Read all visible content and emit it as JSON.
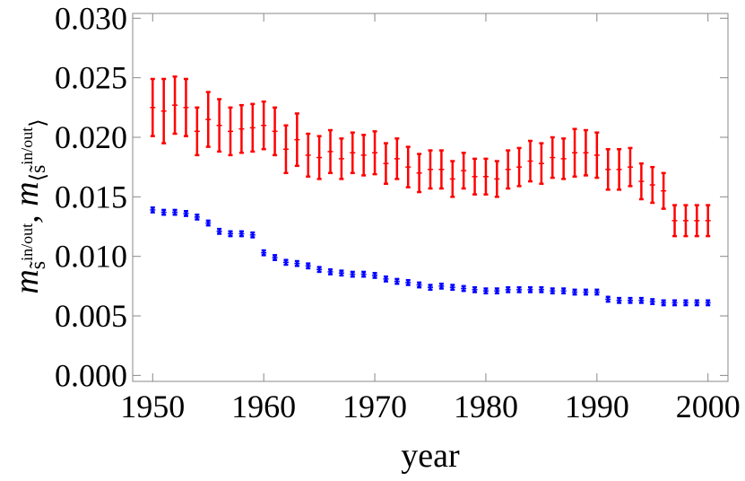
{
  "chart_data": {
    "type": "errorbar",
    "xlabel": "year",
    "ylabel_parts": [
      {
        "text": "m",
        "role": "base"
      },
      {
        "text": "s̃",
        "role": "sub"
      },
      {
        "text": "in/out",
        "role": "subsup"
      },
      {
        "text": ", m",
        "role": "base"
      },
      {
        "text": "⟨s̃",
        "role": "sub"
      },
      {
        "text": "in/out",
        "role": "subsup"
      },
      {
        "text": "⟩",
        "role": "sub"
      }
    ],
    "x": [
      1950,
      1951,
      1952,
      1953,
      1954,
      1955,
      1956,
      1957,
      1958,
      1959,
      1960,
      1961,
      1962,
      1963,
      1964,
      1965,
      1966,
      1967,
      1968,
      1969,
      1970,
      1971,
      1972,
      1973,
      1974,
      1975,
      1976,
      1977,
      1978,
      1979,
      1980,
      1981,
      1982,
      1983,
      1984,
      1985,
      1986,
      1987,
      1988,
      1989,
      1990,
      1991,
      1992,
      1993,
      1994,
      1995,
      1996,
      1997,
      1998,
      1999,
      2000
    ],
    "series": [
      {
        "color": "#ff0000",
        "values": [
          0.0225,
          0.0222,
          0.0227,
          0.0225,
          0.0205,
          0.0215,
          0.021,
          0.0205,
          0.0207,
          0.0208,
          0.021,
          0.0205,
          0.019,
          0.0198,
          0.0185,
          0.0183,
          0.0188,
          0.0182,
          0.0187,
          0.0185,
          0.0187,
          0.0178,
          0.0182,
          0.0175,
          0.017,
          0.0173,
          0.0173,
          0.0165,
          0.0172,
          0.0167,
          0.0167,
          0.0165,
          0.0173,
          0.0175,
          0.018,
          0.0178,
          0.0183,
          0.0182,
          0.0187,
          0.0187,
          0.0185,
          0.0173,
          0.0173,
          0.0175,
          0.0163,
          0.016,
          0.0155,
          0.013,
          0.013,
          0.013,
          0.013
        ],
        "errors": [
          0.0024,
          0.0027,
          0.0024,
          0.0024,
          0.002,
          0.0023,
          0.0022,
          0.002,
          0.002,
          0.002,
          0.002,
          0.002,
          0.002,
          0.0022,
          0.0018,
          0.0018,
          0.0018,
          0.0017,
          0.0017,
          0.0017,
          0.0018,
          0.0017,
          0.0017,
          0.0017,
          0.0016,
          0.0016,
          0.0016,
          0.0015,
          0.0015,
          0.0015,
          0.0015,
          0.0015,
          0.0016,
          0.0016,
          0.0017,
          0.0017,
          0.0017,
          0.0017,
          0.002,
          0.0019,
          0.0019,
          0.0017,
          0.0017,
          0.0016,
          0.0015,
          0.0015,
          0.0015,
          0.0013,
          0.0013,
          0.0013,
          0.0013
        ]
      },
      {
        "color": "#0000ff",
        "values": [
          0.0139,
          0.0137,
          0.0137,
          0.0136,
          0.0133,
          0.0128,
          0.0121,
          0.0119,
          0.0119,
          0.0118,
          0.0103,
          0.0099,
          0.0095,
          0.0094,
          0.0092,
          0.0089,
          0.0087,
          0.0086,
          0.0085,
          0.0085,
          0.0084,
          0.0081,
          0.0079,
          0.0078,
          0.0076,
          0.0074,
          0.0075,
          0.0074,
          0.0073,
          0.0072,
          0.0071,
          0.0071,
          0.0072,
          0.0072,
          0.0072,
          0.0072,
          0.0071,
          0.0071,
          0.007,
          0.007,
          0.007,
          0.0064,
          0.0063,
          0.0063,
          0.0063,
          0.0062,
          0.0061,
          0.0061,
          0.0061,
          0.0061,
          0.0061
        ],
        "errors": [
          0.0002,
          0.0002,
          0.0002,
          0.0002,
          0.0002,
          0.0002,
          0.0002,
          0.0002,
          0.0002,
          0.0002,
          0.0002,
          0.0002,
          0.0002,
          0.0002,
          0.0002,
          0.0002,
          0.0002,
          0.0002,
          0.0002,
          0.0002,
          0.0002,
          0.0002,
          0.0002,
          0.0002,
          0.0002,
          0.0002,
          0.0002,
          0.0002,
          0.0002,
          0.0002,
          0.0002,
          0.0002,
          0.0002,
          0.0002,
          0.0002,
          0.0002,
          0.0002,
          0.0002,
          0.0002,
          0.0002,
          0.0002,
          0.0002,
          0.0002,
          0.0002,
          0.0002,
          0.0002,
          0.0002,
          0.0002,
          0.0002,
          0.0002,
          0.0002
        ]
      }
    ],
    "xlim": [
      1948.2,
      2001.8
    ],
    "xticks": [
      1950,
      1960,
      1970,
      1980,
      1990,
      2000
    ],
    "ylim": [
      -0.0005,
      0.0304
    ],
    "yticks": [
      {
        "value": 0,
        "label": "0.000"
      },
      {
        "value": 0.005,
        "label": "0.005"
      },
      {
        "value": 0.01,
        "label": "0.010"
      },
      {
        "value": 0.015,
        "label": "0.015"
      },
      {
        "value": 0.02,
        "label": "0.020"
      },
      {
        "value": 0.025,
        "label": "0.025"
      },
      {
        "value": 0.03,
        "label": "0.030"
      }
    ],
    "grid": false
  }
}
